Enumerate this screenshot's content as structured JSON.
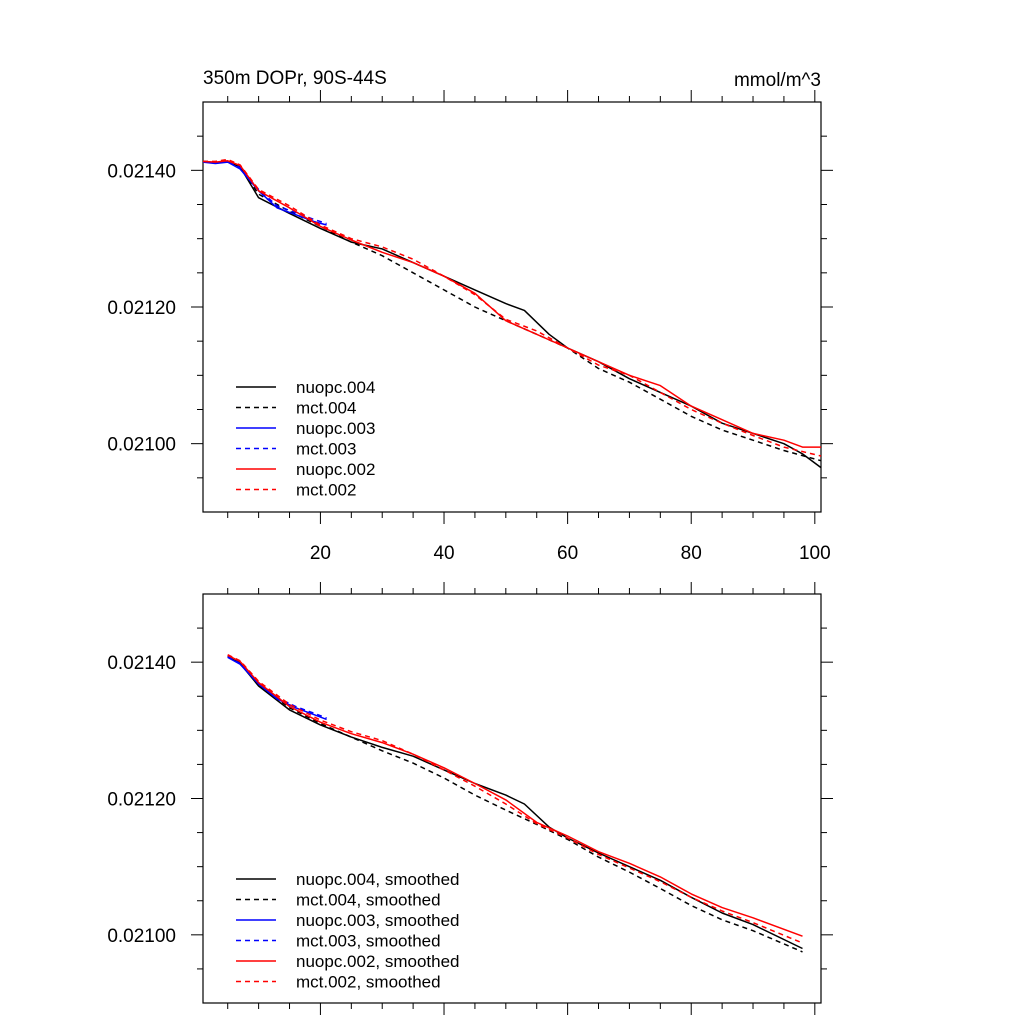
{
  "chart_data": [
    {
      "type": "line",
      "title": "350m DOPr, 90S-44S",
      "units": "mmol/m^3",
      "xlim": [
        1,
        101
      ],
      "ylim": [
        0.0209,
        0.0215
      ],
      "xticks": [
        20,
        40,
        60,
        80,
        100
      ],
      "xtick_labels": [
        "20",
        "40",
        "60",
        "80",
        "100"
      ],
      "yticks": [
        0.0214,
        0.0212,
        0.021
      ],
      "ytick_labels": [
        "0.02140",
        "0.02120",
        "0.02100"
      ],
      "legend_position": "bottom-left",
      "series": [
        {
          "name": "nuopc.004",
          "color": "#000000",
          "dash": "solid",
          "x": [
            1,
            3,
            5,
            7,
            10,
            15,
            20,
            25,
            30,
            35,
            40,
            45,
            50,
            53,
            57,
            60,
            65,
            70,
            75,
            80,
            85,
            90,
            95,
            98,
            101
          ],
          "y": [
            0.021413,
            0.021411,
            0.021413,
            0.021405,
            0.02136,
            0.021337,
            0.021315,
            0.021295,
            0.021285,
            0.021265,
            0.021245,
            0.021225,
            0.021205,
            0.021195,
            0.02116,
            0.02114,
            0.02112,
            0.021095,
            0.021075,
            0.021055,
            0.02103,
            0.021015,
            0.021,
            0.020985,
            0.020965
          ]
        },
        {
          "name": "mct.004",
          "color": "#000000",
          "dash": "dashed",
          "x": [
            1,
            3,
            5,
            7,
            10,
            15,
            20,
            25,
            30,
            35,
            40,
            45,
            50,
            55,
            60,
            65,
            70,
            75,
            80,
            85,
            90,
            95,
            101
          ],
          "y": [
            0.021413,
            0.021412,
            0.021414,
            0.021405,
            0.021365,
            0.02134,
            0.021318,
            0.021295,
            0.021275,
            0.02125,
            0.021225,
            0.0212,
            0.02118,
            0.02116,
            0.02114,
            0.02111,
            0.02109,
            0.021065,
            0.02104,
            0.02102,
            0.021005,
            0.02099,
            0.020975
          ]
        },
        {
          "name": "nuopc.003",
          "color": "#0000ff",
          "dash": "solid",
          "x": [
            1,
            3,
            5,
            7,
            10,
            13,
            16,
            19,
            21
          ],
          "y": [
            0.021412,
            0.02141,
            0.021412,
            0.021402,
            0.02137,
            0.021345,
            0.021335,
            0.021325,
            0.02132
          ]
        },
        {
          "name": "mct.003",
          "color": "#0000ff",
          "dash": "dashed",
          "x": [
            1,
            3,
            5,
            7,
            10,
            13,
            16,
            19,
            21
          ],
          "y": [
            0.021413,
            0.021411,
            0.021414,
            0.021404,
            0.021372,
            0.021348,
            0.021338,
            0.021328,
            0.021322
          ]
        },
        {
          "name": "nuopc.002",
          "color": "#ff0000",
          "dash": "solid",
          "x": [
            1,
            3,
            5,
            7,
            10,
            15,
            20,
            25,
            30,
            35,
            40,
            45,
            50,
            55,
            60,
            65,
            70,
            75,
            80,
            85,
            90,
            95,
            98,
            101
          ],
          "y": [
            0.021413,
            0.021412,
            0.021414,
            0.021407,
            0.02137,
            0.021345,
            0.021318,
            0.021298,
            0.02128,
            0.021265,
            0.021245,
            0.02122,
            0.02118,
            0.02116,
            0.02114,
            0.02112,
            0.0211,
            0.021085,
            0.021055,
            0.021035,
            0.021015,
            0.021005,
            0.020995,
            0.020995
          ]
        },
        {
          "name": "mct.002",
          "color": "#ff0000",
          "dash": "dashed",
          "x": [
            1,
            3,
            5,
            7,
            10,
            15,
            20,
            25,
            30,
            35,
            40,
            45,
            50,
            55,
            60,
            65,
            70,
            75,
            80,
            85,
            90,
            95,
            101
          ],
          "y": [
            0.021413,
            0.021413,
            0.021416,
            0.021408,
            0.021372,
            0.021348,
            0.02132,
            0.0213,
            0.021288,
            0.02127,
            0.021245,
            0.021218,
            0.021182,
            0.021165,
            0.02114,
            0.021115,
            0.0211,
            0.021075,
            0.02105,
            0.02103,
            0.021012,
            0.020995,
            0.020982
          ]
        }
      ]
    },
    {
      "type": "line",
      "title": "",
      "units": "",
      "xlim": [
        1,
        101
      ],
      "ylim": [
        0.0209,
        0.0215
      ],
      "xticks": [
        20,
        40,
        60,
        80,
        100
      ],
      "xtick_labels": [],
      "yticks": [
        0.0214,
        0.0212,
        0.021
      ],
      "ytick_labels": [
        "0.02140",
        "0.02120",
        "0.02100"
      ],
      "legend_position": "bottom-left",
      "series": [
        {
          "name": "nuopc.004, smoothed",
          "color": "#000000",
          "dash": "solid",
          "x": [
            5,
            7,
            10,
            15,
            20,
            25,
            30,
            35,
            40,
            45,
            50,
            53,
            57,
            60,
            65,
            70,
            75,
            80,
            85,
            90,
            98
          ],
          "y": [
            0.021408,
            0.021398,
            0.021365,
            0.02133,
            0.021308,
            0.02129,
            0.021275,
            0.021262,
            0.021242,
            0.021222,
            0.021205,
            0.021192,
            0.021158,
            0.021142,
            0.02112,
            0.0211,
            0.02108,
            0.021055,
            0.021032,
            0.021015,
            0.02098
          ]
        },
        {
          "name": "mct.004, smoothed",
          "color": "#000000",
          "dash": "dashed",
          "x": [
            5,
            7,
            10,
            15,
            20,
            25,
            30,
            35,
            40,
            45,
            50,
            55,
            60,
            65,
            70,
            75,
            80,
            85,
            90,
            98
          ],
          "y": [
            0.021409,
            0.021399,
            0.021367,
            0.021333,
            0.02131,
            0.02129,
            0.02127,
            0.021252,
            0.02123,
            0.021205,
            0.021183,
            0.021162,
            0.02114,
            0.021114,
            0.021092,
            0.021068,
            0.021043,
            0.021022,
            0.021006,
            0.020975
          ]
        },
        {
          "name": "nuopc.003, smoothed",
          "color": "#0000ff",
          "dash": "solid",
          "x": [
            5,
            7,
            10,
            13,
            16,
            19,
            21
          ],
          "y": [
            0.021407,
            0.021397,
            0.021368,
            0.021346,
            0.021333,
            0.021323,
            0.021316
          ]
        },
        {
          "name": "mct.003, smoothed",
          "color": "#0000ff",
          "dash": "dashed",
          "x": [
            5,
            7,
            10,
            13,
            16,
            19,
            21
          ],
          "y": [
            0.021408,
            0.021398,
            0.02137,
            0.021348,
            0.021335,
            0.021325,
            0.021318
          ]
        },
        {
          "name": "nuopc.002, smoothed",
          "color": "#ff0000",
          "dash": "solid",
          "x": [
            5,
            7,
            10,
            15,
            20,
            25,
            30,
            35,
            40,
            45,
            50,
            55,
            60,
            65,
            70,
            75,
            80,
            85,
            90,
            98
          ],
          "y": [
            0.02141,
            0.021401,
            0.02137,
            0.021335,
            0.021312,
            0.021295,
            0.021282,
            0.021265,
            0.021245,
            0.021222,
            0.021198,
            0.021165,
            0.021145,
            0.021122,
            0.021105,
            0.021085,
            0.02106,
            0.02104,
            0.021025,
            0.020998
          ]
        },
        {
          "name": "mct.002, smoothed",
          "color": "#ff0000",
          "dash": "dashed",
          "x": [
            5,
            7,
            10,
            15,
            20,
            25,
            30,
            35,
            40,
            45,
            50,
            55,
            60,
            65,
            70,
            75,
            80,
            85,
            90,
            98
          ],
          "y": [
            0.021411,
            0.021402,
            0.021372,
            0.021338,
            0.021315,
            0.021298,
            0.021285,
            0.021265,
            0.021242,
            0.021218,
            0.021192,
            0.021163,
            0.021142,
            0.021118,
            0.021098,
            0.021078,
            0.021055,
            0.021035,
            0.021018,
            0.020988
          ]
        }
      ]
    }
  ]
}
